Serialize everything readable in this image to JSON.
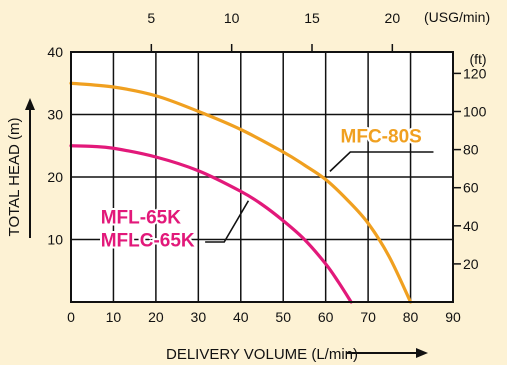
{
  "chart_data": {
    "type": "line",
    "title": "",
    "xlabel": "DELIVERY VOLUME (L/min)",
    "ylabel": "TOTAL HEAD (m)",
    "xlim": [
      0,
      90
    ],
    "ylim": [
      0,
      40
    ],
    "x_ticks": [
      "0",
      "10",
      "20",
      "30",
      "40",
      "50",
      "60",
      "70",
      "80",
      "90"
    ],
    "y_ticks": [
      "10",
      "20",
      "30",
      "40"
    ],
    "top_axis": {
      "unit_label": "(USG/min)",
      "ticks": [
        {
          "value": 5,
          "label": "5"
        },
        {
          "value": 10,
          "label": "10"
        },
        {
          "value": 15,
          "label": "15"
        },
        {
          "value": 20,
          "label": "20"
        }
      ]
    },
    "right_axis": {
      "unit_label": "(ft)",
      "ticks": [
        {
          "value": 20,
          "label": "20"
        },
        {
          "value": 40,
          "label": "40"
        },
        {
          "value": 60,
          "label": "60"
        },
        {
          "value": 80,
          "label": "80"
        },
        {
          "value": 100,
          "label": "100"
        },
        {
          "value": 120,
          "label": "120"
        }
      ]
    },
    "grid": true,
    "series": [
      {
        "name": "MFC-80S",
        "color": "#f0a020",
        "x": [
          0,
          10,
          20,
          30,
          40,
          50,
          55,
          60,
          65,
          70,
          75,
          80
        ],
        "y": [
          35,
          34.4,
          33,
          30.5,
          27.6,
          24,
          21.9,
          19.6,
          16.4,
          12.6,
          7.2,
          0
        ]
      },
      {
        "name": "MFL-65K",
        "label_second": "MFLC-65K",
        "color": "#e2197a",
        "x": [
          0,
          5,
          10,
          20,
          30,
          40,
          45,
          50,
          55,
          60,
          63,
          66
        ],
        "y": [
          25,
          24.9,
          24.6,
          23.2,
          21,
          17.7,
          15.6,
          13,
          10,
          6.1,
          3.2,
          0
        ]
      }
    ]
  }
}
